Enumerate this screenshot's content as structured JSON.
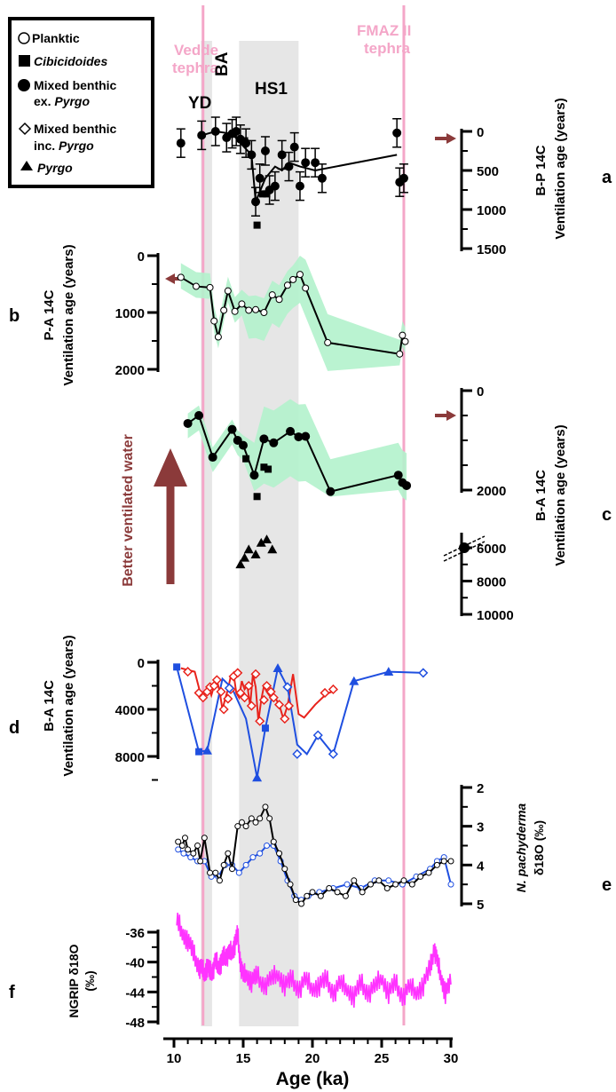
{
  "legend": {
    "items": [
      {
        "symbol": "open-circle",
        "label": "Planktic",
        "italic": false
      },
      {
        "symbol": "filled-square",
        "label": "Cibicidoides",
        "italic": true
      },
      {
        "symbol": "filled-circle",
        "label_line1": "Mixed benthic",
        "label_line2": "ex.",
        "label_line2_italic": "Pyrgo"
      },
      {
        "symbol": "open-diamond",
        "label_line1": "Mixed benthic",
        "label_line2": "inc.",
        "label_line2_italic": "Pyrgo"
      },
      {
        "symbol": "filled-triangle",
        "label": "Pyrgo",
        "italic": true
      }
    ]
  },
  "annotations": {
    "vedde_line1": "Vedde",
    "vedde_line2": "tephra",
    "fmaz_line1": "FMAZ II",
    "fmaz_line2": "tephra",
    "yd": "YD",
    "ba": "BA",
    "hs1": "HS1",
    "better_ventilated": "Better ventilated water"
  },
  "colors": {
    "tephra_line": "#f4a6c8",
    "hs1_band": "#e6e6e6",
    "uncertainty_band": "#b3f2cc",
    "arrow": "#8b3a3a",
    "red_series": "#e8231c",
    "blue_series": "#1f4fe0",
    "ngrip": "#ff33ff"
  },
  "chart_data": [
    {
      "panel": "a",
      "type": "scatter",
      "ylabel_line1": "B-P 14C",
      "ylabel_line2": "Ventilation age (years)",
      "yticks": [
        "0",
        "500",
        "1000",
        "1500"
      ],
      "ylim": [
        0,
        1500
      ],
      "reversed": true,
      "series_mixed_benthic_ex_pyrgo": {
        "x": [
          10.5,
          12.0,
          13.0,
          13.8,
          14.2,
          14.5,
          14.8,
          15.2,
          15.6,
          15.9,
          16.2,
          16.6,
          16.9,
          17.3,
          17.8,
          18.3,
          18.7,
          19.1,
          19.5,
          20.2,
          20.7,
          26.1,
          26.3,
          26.6
        ],
        "y": [
          150,
          50,
          0,
          80,
          30,
          0,
          100,
          150,
          300,
          900,
          600,
          250,
          750,
          700,
          300,
          450,
          200,
          700,
          400,
          400,
          600,
          20,
          650,
          600
        ]
      },
      "series_cibicidoides": {
        "x": [
          15.1,
          16.0,
          16.4,
          16.7
        ],
        "y": [
          120,
          1200,
          800,
          800
        ]
      }
    },
    {
      "panel": "b",
      "type": "line",
      "ylabel_line1": "P-A 14C",
      "ylabel_line2": "Ventilation age (years)",
      "yticks": [
        "0",
        "1000",
        "2000"
      ],
      "ylim": [
        0,
        2000
      ],
      "reversed": true,
      "x": [
        10.5,
        11.6,
        12.6,
        12.9,
        13.2,
        13.6,
        13.9,
        14.4,
        14.9,
        15.4,
        15.9,
        16.5,
        17.1,
        17.6,
        18.2,
        18.6,
        19.1,
        19.5,
        21.1,
        26.3,
        26.5,
        26.7
      ],
      "y": [
        380,
        540,
        560,
        1150,
        1430,
        960,
        620,
        980,
        850,
        960,
        950,
        1000,
        690,
        770,
        520,
        420,
        330,
        570,
        1530,
        1730,
        1400,
        1510
      ]
    },
    {
      "panel": "c",
      "type": "scatter",
      "ylabel_line1": "B-A 14C",
      "ylabel_line2": "Ventilation age (years)",
      "yticks": [
        "0",
        "2000",
        "6000",
        "8000",
        "10000"
      ],
      "axis_break": true,
      "mixed_benthic_ex_pyrgo": {
        "x": [
          11.0,
          11.8,
          12.8,
          14.2,
          14.6,
          15.0,
          15.8,
          16.5,
          17.2,
          18.4,
          19.0,
          19.5,
          21.3,
          26.2,
          26.5,
          26.8
        ],
        "y": [
          660,
          500,
          1340,
          780,
          1000,
          1100,
          1700,
          970,
          1050,
          820,
          930,
          920,
          2030,
          1700,
          1850,
          1910
        ]
      },
      "cibicidoides": {
        "x": [
          15.2,
          16.0,
          16.5,
          16.8
        ],
        "y": [
          1370,
          2130,
          1540,
          1580
        ]
      },
      "pyrgo": {
        "x": [
          14.8,
          15.1,
          15.4,
          15.9,
          16.3,
          16.7,
          17.1
        ],
        "y": [
          7000,
          6600,
          6100,
          6400,
          5700,
          5500,
          6100
        ]
      }
    },
    {
      "panel": "d",
      "type": "line",
      "ylabel_line1": "B-A 14C",
      "ylabel_line2": "Ventilation age (years)",
      "yticks": [
        "0",
        "4000",
        "8000"
      ],
      "ylim": [
        0,
        10000
      ],
      "reversed": true,
      "red": {
        "x": [
          10.5,
          11.5,
          11.9,
          12.1,
          12.3,
          12.5,
          12.7,
          12.9,
          13.1,
          13.3,
          13.5,
          13.7,
          13.9,
          14.1,
          14.3,
          14.5,
          14.7,
          14.9,
          15.1,
          15.3,
          15.5,
          15.7,
          15.9,
          16.1,
          16.3,
          16.5,
          16.7,
          17.0,
          17.3,
          17.6,
          17.9,
          18.2,
          18.6,
          19.0,
          19.4,
          20.2,
          21.0,
          21.8
        ],
        "y": [
          500,
          800,
          2600,
          3000,
          2500,
          2100,
          2800,
          2000,
          1500,
          2500,
          4000,
          3100,
          2300,
          1200,
          900,
          2600,
          3000,
          1600,
          2300,
          2000,
          3700,
          1000,
          2100,
          5000,
          3200,
          2000,
          2500,
          3000,
          3000,
          3600,
          4800,
          3700,
          1000,
          4400,
          4700,
          3600,
          2700,
          2300
        ]
      },
      "blue": {
        "x": [
          10.2,
          11.8,
          12.4,
          13.5,
          14.2,
          15.2,
          16.0,
          16.6,
          17.5,
          18.2,
          18.9,
          19.6,
          20.4,
          21.5,
          23.0,
          25.5,
          28.0
        ],
        "y": [
          400,
          7600,
          7500,
          1400,
          2200,
          4800,
          9800,
          5600,
          500,
          2100,
          7000,
          7800,
          6200,
          7800,
          1600,
          800,
          900
        ]
      },
      "markers": {
        "red_diamonds": {
          "x": [
            11.0,
            11.8,
            12.1,
            12.4,
            12.6,
            12.9,
            13.1,
            13.4,
            13.6,
            13.9,
            14.1,
            14.3,
            14.6,
            14.8,
            15.1,
            15.4,
            15.6,
            15.9,
            16.2,
            16.5,
            16.7,
            17.0,
            17.2,
            17.6,
            18.0,
            18.3,
            20.9,
            21.5
          ],
          "y": [
            800,
            2600,
            3000,
            2500,
            2100,
            2000,
            1500,
            2500,
            4000,
            3100,
            2300,
            1200,
            900,
            2600,
            3000,
            2000,
            3700,
            1000,
            5000,
            3200,
            2000,
            2500,
            3000,
            3600,
            4800,
            3700,
            2600,
            2300
          ]
        },
        "blue_squares": {
          "x": [
            10.2,
            11.8,
            16.6
          ],
          "y": [
            400,
            7600,
            5600
          ]
        },
        "blue_triangles": {
          "x": [
            12.4,
            16.0,
            17.5,
            23.0,
            25.5
          ],
          "y": [
            7500,
            9800,
            500,
            1600,
            800
          ]
        },
        "blue_diamonds": {
          "x": [
            14.0,
            18.2,
            18.9,
            20.4,
            21.5,
            28.0
          ],
          "y": [
            2200,
            2100,
            7800,
            6200,
            7800,
            900
          ]
        }
      }
    },
    {
      "panel": "e",
      "type": "line",
      "ylabel_line1": "N. pachyderma",
      "ylabel_line2": "δ18O (‰)",
      "yticks": [
        "2",
        "3",
        "4",
        "5"
      ],
      "ylim": [
        2,
        5
      ],
      "reversed": true,
      "black": {
        "x": [
          10.3,
          10.6,
          10.8,
          11.0,
          11.4,
          11.7,
          11.9,
          12.2,
          12.6,
          13.0,
          13.3,
          13.6,
          13.9,
          14.2,
          14.6,
          14.9,
          15.2,
          15.6,
          15.9,
          16.2,
          16.6,
          16.9,
          17.2,
          17.6,
          18.0,
          18.4,
          18.8,
          19.2,
          19.6,
          20.0,
          20.6,
          21.2,
          21.8,
          22.4,
          23.0,
          23.6,
          24.2,
          24.8,
          25.4,
          26.0,
          26.6,
          27.2,
          27.8,
          28.4,
          29.0,
          29.5,
          30.0
        ],
        "y": [
          3.4,
          3.5,
          3.3,
          3.6,
          3.7,
          3.5,
          3.9,
          3.3,
          4.2,
          4.2,
          4.4,
          4.0,
          3.7,
          4.1,
          3.0,
          2.9,
          3.0,
          2.8,
          2.9,
          2.8,
          2.5,
          2.8,
          3.4,
          3.7,
          4.1,
          4.5,
          4.9,
          5.0,
          4.8,
          4.7,
          4.8,
          4.6,
          4.7,
          4.8,
          4.4,
          4.7,
          4.5,
          4.4,
          4.6,
          4.5,
          4.4,
          4.5,
          4.3,
          4.2,
          4.0,
          3.9,
          3.9
        ]
      },
      "blue": {
        "x": [
          10.3,
          10.7,
          11.2,
          11.7,
          12.2,
          12.7,
          13.2,
          13.7,
          14.2,
          14.7,
          15.2,
          15.7,
          16.2,
          16.7,
          17.2,
          17.7,
          18.2,
          18.7,
          19.2,
          19.7,
          20.5,
          21.5,
          22.5,
          23.5,
          24.5,
          25.5,
          26.5,
          27.5,
          28.5,
          29.0,
          29.5,
          30.0
        ],
        "y": [
          3.6,
          3.7,
          3.8,
          3.9,
          3.9,
          4.3,
          4.3,
          4.0,
          4.0,
          4.2,
          4.0,
          3.8,
          3.7,
          3.5,
          3.5,
          3.9,
          4.4,
          4.8,
          4.9,
          4.8,
          4.7,
          4.6,
          4.5,
          4.6,
          4.4,
          4.4,
          4.5,
          4.3,
          4.1,
          3.9,
          3.8,
          4.5
        ]
      }
    },
    {
      "panel": "f",
      "type": "line",
      "ylabel_line1": "NGRIP δ18O",
      "ylabel_line2": "(‰)",
      "yticks": [
        "-36",
        "-40",
        "-44",
        "-48"
      ],
      "ylim": [
        -48,
        -34
      ],
      "x": [
        10.2,
        10.6,
        11.0,
        11.4,
        11.8,
        12.0,
        12.2,
        12.4,
        12.6,
        12.8,
        13.0,
        13.2,
        13.4,
        13.6,
        13.8,
        14.0,
        14.2,
        14.4,
        14.6,
        14.8,
        15.0,
        15.2,
        15.6,
        16.0,
        16.5,
        17.0,
        17.5,
        18.0,
        18.5,
        19.0,
        19.5,
        20.0,
        20.5,
        21.0,
        21.5,
        22.0,
        22.5,
        23.0,
        23.5,
        24.0,
        24.5,
        25.0,
        25.5,
        26.0,
        26.5,
        27.0,
        27.5,
        28.0,
        28.5,
        28.8,
        29.0,
        29.3,
        29.6,
        30.0
      ],
      "y": [
        -34.5,
        -36,
        -37,
        -39,
        -40.5,
        -41,
        -41.5,
        -40.5,
        -41.5,
        -41,
        -40,
        -40.5,
        -40,
        -39.5,
        -39,
        -39,
        -38.5,
        -37.5,
        -36.5,
        -40,
        -42,
        -41.5,
        -42.5,
        -42,
        -43,
        -42.5,
        -41.5,
        -43,
        -42.5,
        -43.5,
        -42.5,
        -43.5,
        -43,
        -42.5,
        -44,
        -43,
        -43.5,
        -44.5,
        -43,
        -44,
        -43.5,
        -42,
        -44,
        -43,
        -44.5,
        -43.5,
        -44,
        -43,
        -41,
        -38,
        -40,
        -42,
        -44,
        -43
      ]
    }
  ],
  "x_axis": {
    "label": "Age (ka)",
    "ticks": [
      "10",
      "15",
      "20",
      "25",
      "30"
    ],
    "xlim": [
      10,
      30
    ]
  },
  "panel_labels": [
    "a",
    "b",
    "c",
    "d",
    "e",
    "f"
  ]
}
